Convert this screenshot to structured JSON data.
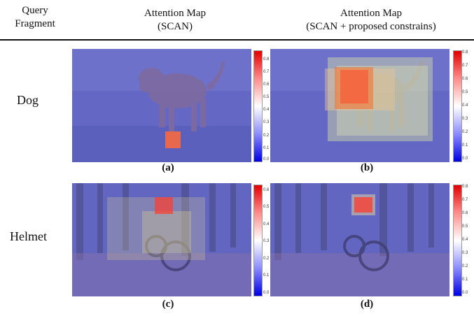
{
  "header": {
    "col0": [
      "Query",
      "Fragment"
    ],
    "col1": [
      "Attention Map",
      "(SCAN)"
    ],
    "col2": [
      "Attention Map",
      "(SCAN + proposed constrains)"
    ]
  },
  "rows": [
    {
      "label": "Dog"
    },
    {
      "label": "Helmet"
    }
  ],
  "captions": [
    "(a)",
    "(b)",
    "(c)",
    "(d)"
  ],
  "colorbars": {
    "a": [
      "0.8",
      "0.7",
      "0.6",
      "0.5",
      "0.4",
      "0.3",
      "0.2",
      "0.1",
      "0.0"
    ],
    "b": [
      "0.8",
      "0.7",
      "0.6",
      "0.5",
      "0.4",
      "0.3",
      "0.2",
      "0.1",
      "0.0"
    ],
    "c": [
      "0.6",
      "0.5",
      "0.4",
      "0.3",
      "0.2",
      "0.1",
      "0.0"
    ],
    "d": [
      "0.8",
      "0.7",
      "0.6",
      "0.5",
      "0.4",
      "0.3",
      "0.2",
      "0.1",
      "0.0"
    ]
  },
  "colors": {
    "low": "#0000e3",
    "mid": "#ffffff",
    "high": "#e30000"
  }
}
